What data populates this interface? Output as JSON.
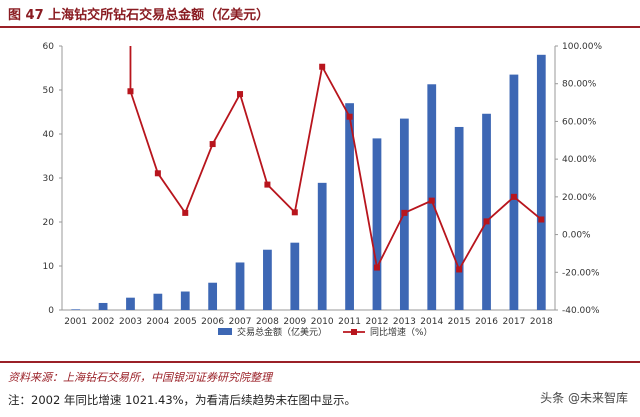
{
  "title": "图 47 上海钻交所钻石交易总金额（亿美元）",
  "source_note": "资料来源：上海钻石交易所，中国银河证券研究院整理",
  "footnote": "注：2002 年同比增速 1021.43%，为看清后续趋势未在图中显示。",
  "watermark": "头条 @未来智库",
  "colors": {
    "bar": "#3d67b4",
    "line": "#b8151d",
    "rule": "#9a2027"
  },
  "chart_data": {
    "type": "bar",
    "categories": [
      "2001",
      "2002",
      "2003",
      "2004",
      "2005",
      "2006",
      "2007",
      "2008",
      "2009",
      "2010",
      "2011",
      "2012",
      "2013",
      "2014",
      "2015",
      "2016",
      "2017",
      "2018"
    ],
    "series": [
      {
        "name": "交易总金额（亿美元）",
        "type": "bar",
        "axis": "left",
        "values": [
          0.15,
          1.6,
          2.8,
          3.7,
          4.2,
          6.2,
          10.8,
          13.7,
          15.3,
          28.9,
          47.0,
          39.0,
          43.5,
          51.3,
          41.6,
          44.6,
          53.5,
          58.0
        ]
      },
      {
        "name": "同比增速（%）",
        "type": "line",
        "axis": "right",
        "values": [
          null,
          null,
          76.0,
          32.5,
          11.5,
          48.0,
          74.5,
          26.5,
          11.8,
          89.0,
          62.5,
          -17.5,
          11.5,
          18.0,
          -18.5,
          7.0,
          20.0,
          8.0
        ]
      }
    ],
    "line_offchart_start": {
      "x": "2003",
      "note": "line continues above the top of the right axis from 2002 (1021.43%)"
    },
    "yleft": {
      "lim": [
        0,
        60
      ],
      "ticks": [
        "0",
        "10",
        "20",
        "30",
        "40",
        "50",
        "60"
      ]
    },
    "yright": {
      "lim": [
        -40,
        100
      ],
      "ticks": [
        "-40.00%",
        "-20.00%",
        "0.00%",
        "20.00%",
        "40.00%",
        "60.00%",
        "80.00%",
        "100.00%"
      ]
    },
    "legend": [
      "交易总金额（亿美元）",
      "同比增速（%）"
    ],
    "legend_position": "bottom",
    "grid": false
  }
}
